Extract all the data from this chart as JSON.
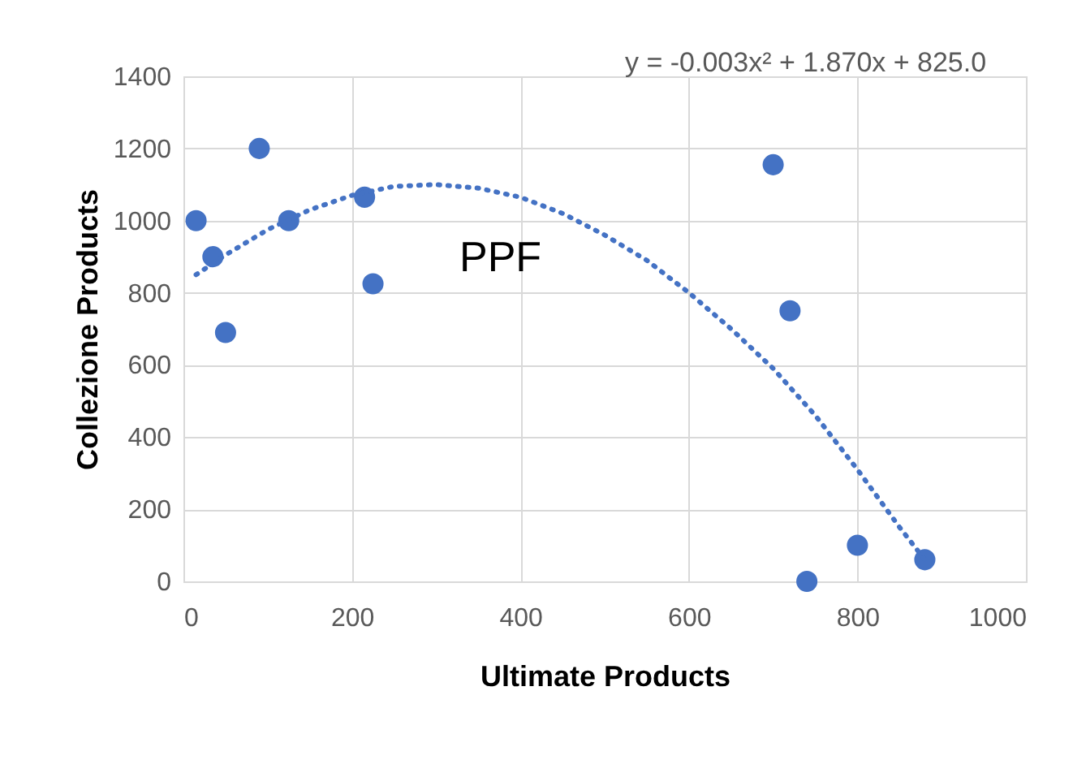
{
  "chart_data": {
    "type": "scatter",
    "xlabel": "Ultimate Products",
    "ylabel": "Collezione Products",
    "xlim": [
      0,
      1000
    ],
    "xticks": [
      0,
      200,
      400,
      600,
      800,
      1000
    ],
    "ylim": [
      0,
      1400
    ],
    "yticks": [
      0,
      200,
      400,
      600,
      800,
      1000,
      1200,
      1400
    ],
    "grid": true,
    "annotations": [
      "y = -0.003x² + 1.870x + 825.0",
      "PPF"
    ],
    "series": [
      {
        "marker": "circle",
        "color": "#4472c4",
        "x": [
          15,
          35,
          50,
          90,
          125,
          215,
          225,
          700,
          720,
          740,
          800,
          880
        ],
        "values": [
          1000,
          900,
          690,
          1200,
          1000,
          1065,
          825,
          1155,
          750,
          0,
          100,
          60
        ]
      },
      {
        "type": "line",
        "marker": "none",
        "line_style": "dotted",
        "color": "#4472c4",
        "x": [
          15,
          50,
          100,
          150,
          200,
          250,
          300,
          350,
          400,
          450,
          500,
          550,
          600,
          650,
          700,
          750,
          800,
          850,
          880
        ],
        "values": [
          850,
          905,
          975,
          1030,
          1070,
          1095,
          1100,
          1090,
          1065,
          1020,
          960,
          890,
          800,
          700,
          590,
          460,
          310,
          150,
          60
        ]
      }
    ]
  }
}
